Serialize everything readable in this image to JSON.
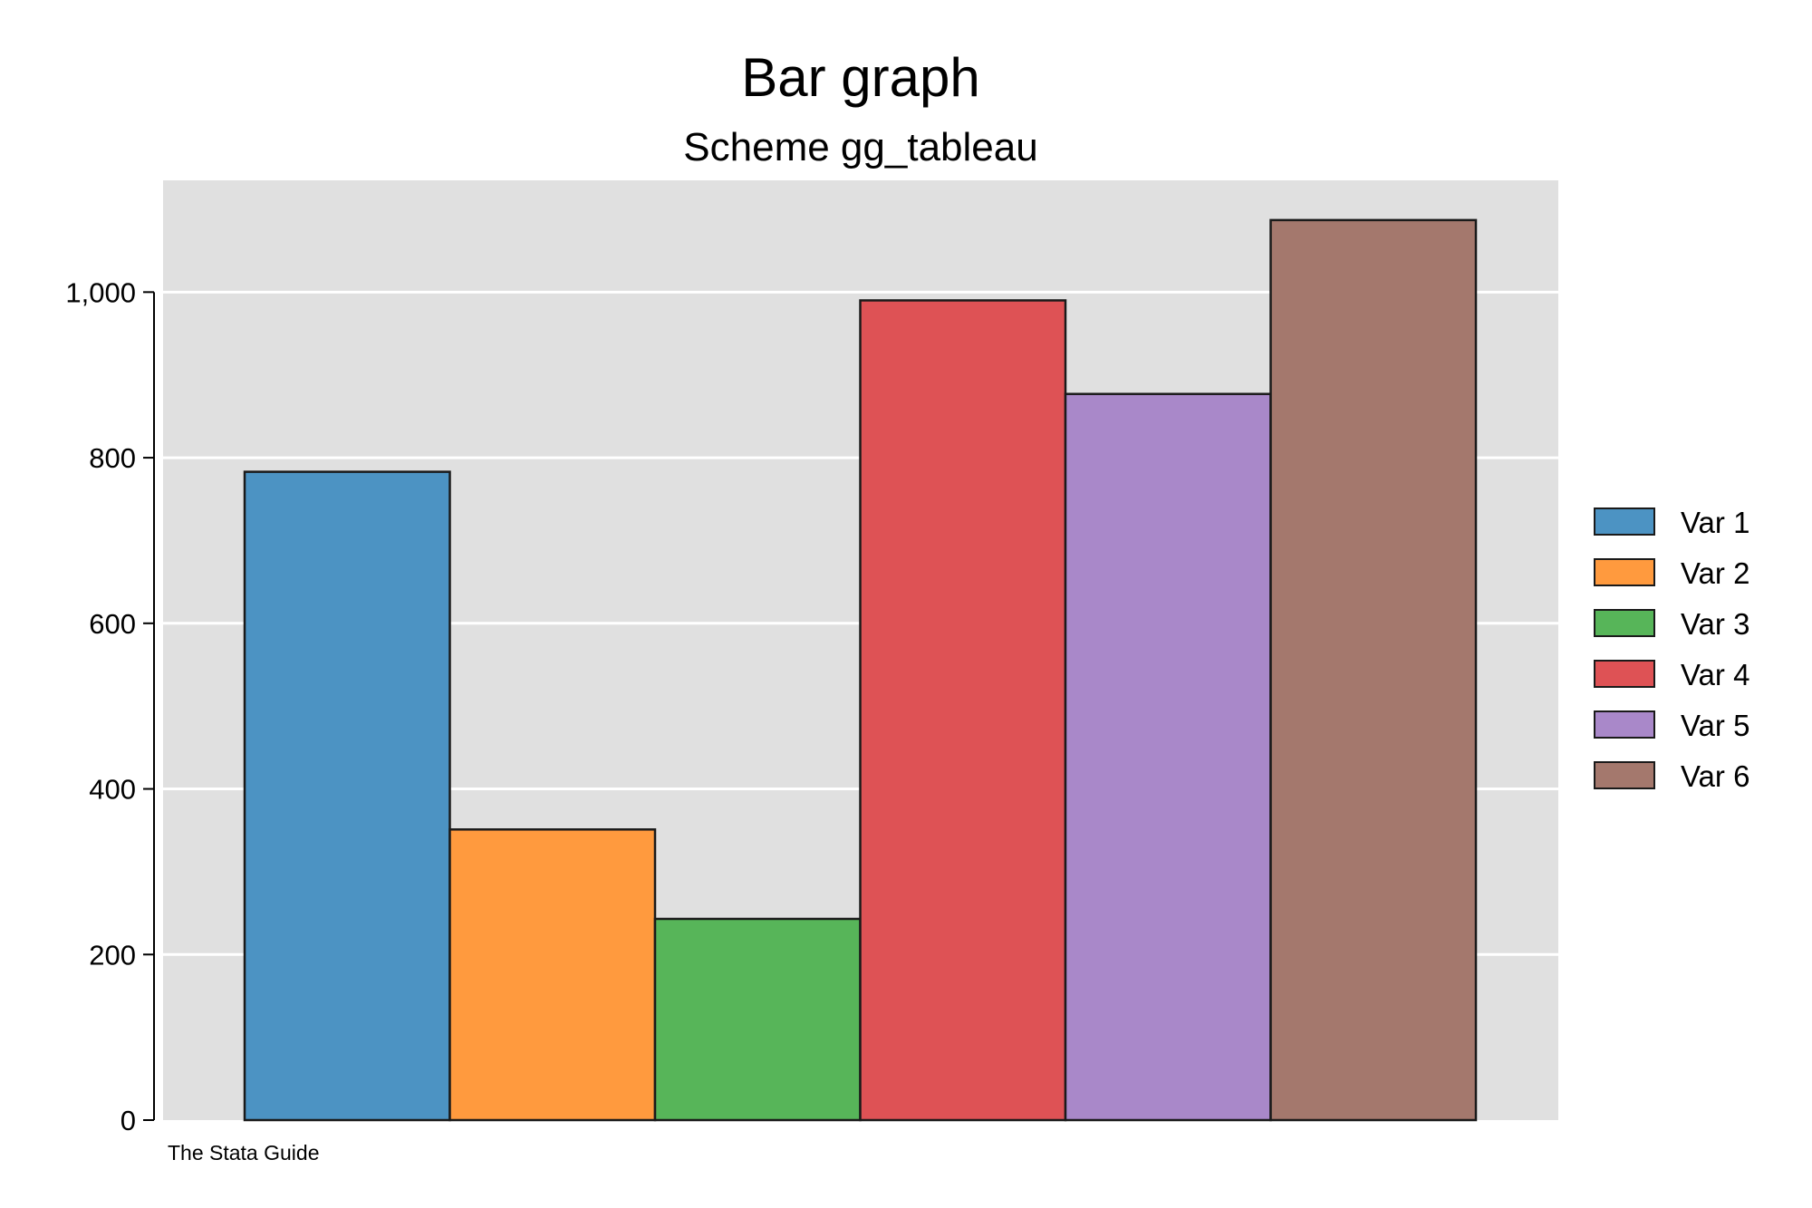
{
  "chart_data": {
    "type": "bar",
    "title": "Bar graph",
    "subtitle": "Scheme gg_tableau",
    "note": "The Stata Guide",
    "xlabel": "",
    "ylabel": "",
    "ylim": [
      0,
      1135
    ],
    "yticks": [
      0,
      200,
      400,
      600,
      800,
      1000
    ],
    "ytick_labels": [
      "0",
      "200",
      "400",
      "600",
      "800",
      "1,000"
    ],
    "grid": true,
    "legend_position": "right",
    "series": [
      {
        "name": "Var 1",
        "value": 783,
        "color": "#4C93C3"
      },
      {
        "name": "Var 2",
        "value": 351,
        "color": "#FF9A3E"
      },
      {
        "name": "Var 3",
        "value": 243,
        "color": "#57B559"
      },
      {
        "name": "Var 4",
        "value": 990,
        "color": "#DE5255"
      },
      {
        "name": "Var 5",
        "value": 877,
        "color": "#A988C9"
      },
      {
        "name": "Var 6",
        "value": 1087,
        "color": "#A4786D"
      }
    ],
    "colors": {
      "plot_background": "#E0E0E0",
      "grid": "#FFFFFF",
      "bar_outline": "#1A1A1A"
    }
  }
}
